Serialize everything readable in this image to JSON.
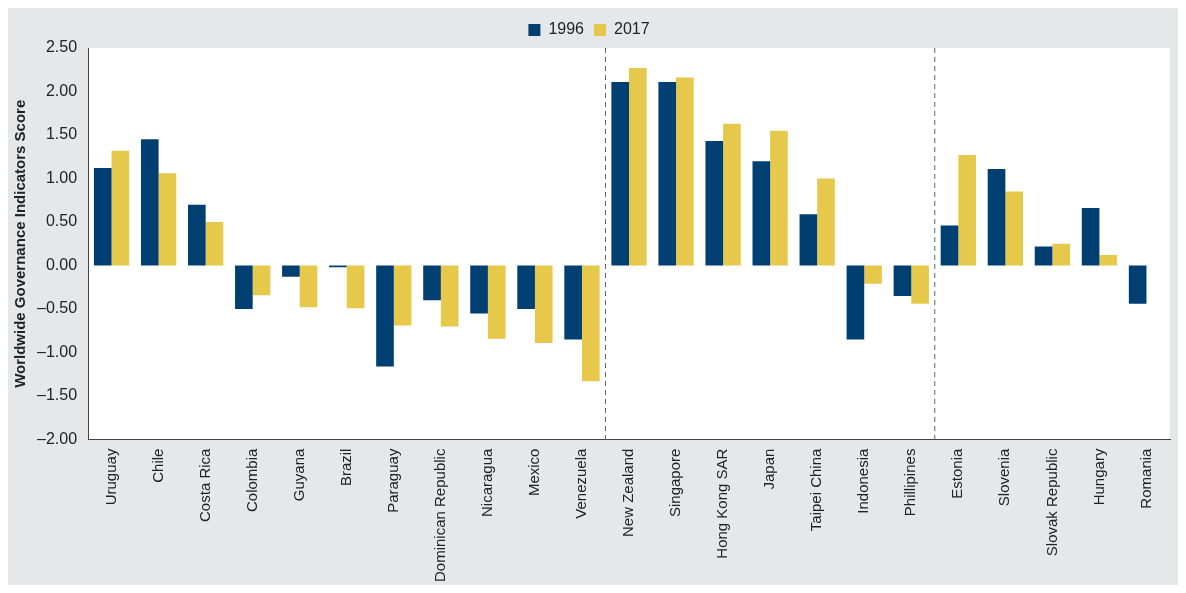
{
  "chart_data": {
    "type": "bar",
    "ylabel": "Worldwide Governance Indicators Score",
    "categories": [
      "Uruguay",
      "Chile",
      "Costa Rica",
      "Colombia",
      "Guyana",
      "Brazil",
      "Paraguay",
      "Dominican Republic",
      "Nicaragua",
      "Mexico",
      "Venezuela",
      "New Zealand",
      "Singapore",
      "Hong Kong SAR",
      "Japan",
      "Taipei China",
      "Indonesia",
      "Phillipines",
      "Estonia",
      "Slovenia",
      "Slovak Republic",
      "Hungary",
      "Romania"
    ],
    "series": [
      {
        "name": "1996",
        "color": "#003f72",
        "values": [
          1.12,
          1.45,
          0.7,
          -0.5,
          -0.13,
          -0.02,
          -1.16,
          -0.4,
          -0.55,
          -0.5,
          -0.85,
          2.11,
          2.11,
          1.43,
          1.2,
          0.59,
          -0.85,
          -0.35,
          0.46,
          1.11,
          0.22,
          0.66,
          -0.44
        ]
      },
      {
        "name": "2017",
        "color": "#e6c84a",
        "values": [
          1.32,
          1.06,
          0.5,
          -0.34,
          -0.48,
          -0.49,
          -0.69,
          -0.7,
          -0.84,
          -0.89,
          -1.33,
          2.27,
          2.16,
          1.63,
          1.55,
          1.0,
          -0.21,
          -0.44,
          1.27,
          0.85,
          0.25,
          0.12,
          0.0
        ]
      }
    ],
    "ylim": [
      -2,
      2.5
    ],
    "yticks": [
      {
        "value": -2,
        "label": "–2.00"
      },
      {
        "value": -1.5,
        "label": "–1.50"
      },
      {
        "value": -1,
        "label": "–1.00"
      },
      {
        "value": -0.5,
        "label": "–0.50"
      },
      {
        "value": 0,
        "label": "0.00"
      },
      {
        "value": 0.5,
        "label": "0.50"
      },
      {
        "value": 1,
        "label": "1.00"
      },
      {
        "value": 1.5,
        "label": "1.50"
      },
      {
        "value": 2,
        "label": "2.00"
      },
      {
        "value": 2.5,
        "label": "2.50"
      }
    ],
    "grid": false,
    "legend": "top"
  }
}
